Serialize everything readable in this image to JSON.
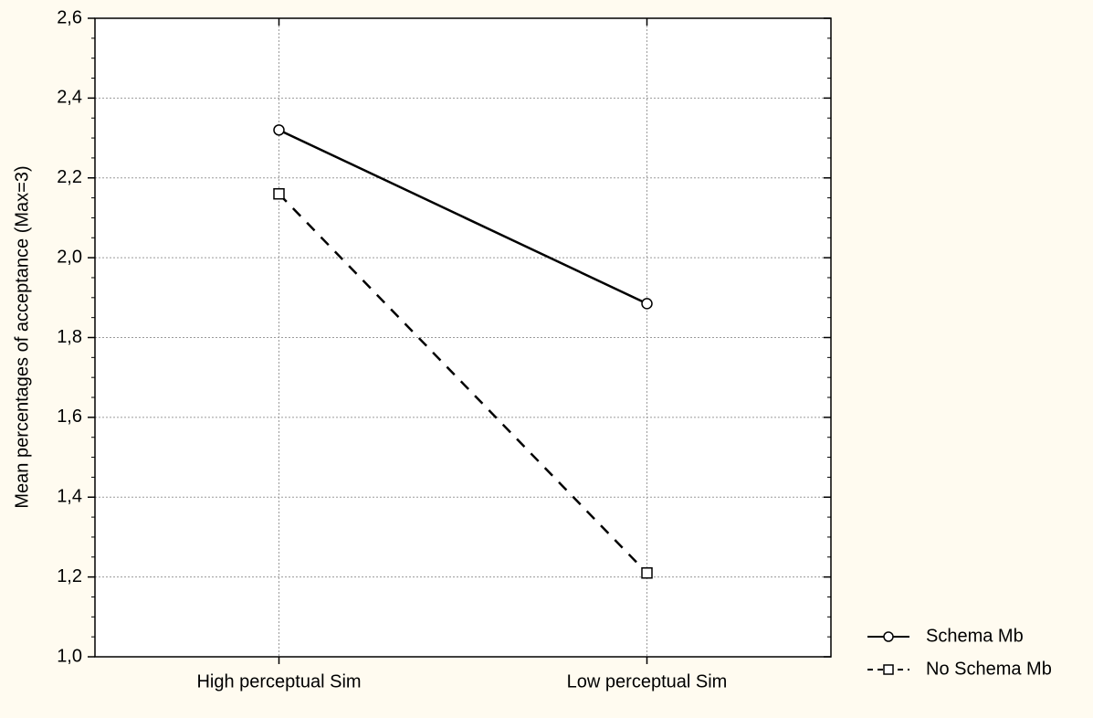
{
  "chart_data": {
    "type": "line",
    "title": "",
    "xlabel": "",
    "ylabel": "Mean percentages of acceptance (Max=3)",
    "categories": [
      "High perceptual Sim",
      "Low perceptual Sim"
    ],
    "ylim": [
      1.0,
      2.6
    ],
    "yticks": [
      "1,0",
      "1,2",
      "1,4",
      "1,6",
      "1,8",
      "2,0",
      "2,2",
      "2,4",
      "2,6"
    ],
    "grid": true,
    "legend_position": "bottom-right, outside plot",
    "series": [
      {
        "name": "Schema Mb",
        "values": [
          2.32,
          1.885
        ],
        "line_style": "solid",
        "marker": "circle",
        "color": "#000000"
      },
      {
        "name": "No Schema Mb",
        "values": [
          2.16,
          1.21
        ],
        "line_style": "dashed",
        "marker": "square",
        "color": "#000000"
      }
    ]
  },
  "colors": {
    "background": "#fffbf0",
    "plot_area": "#ffffff",
    "grid": "#9a9a9a",
    "ink": "#000000"
  }
}
